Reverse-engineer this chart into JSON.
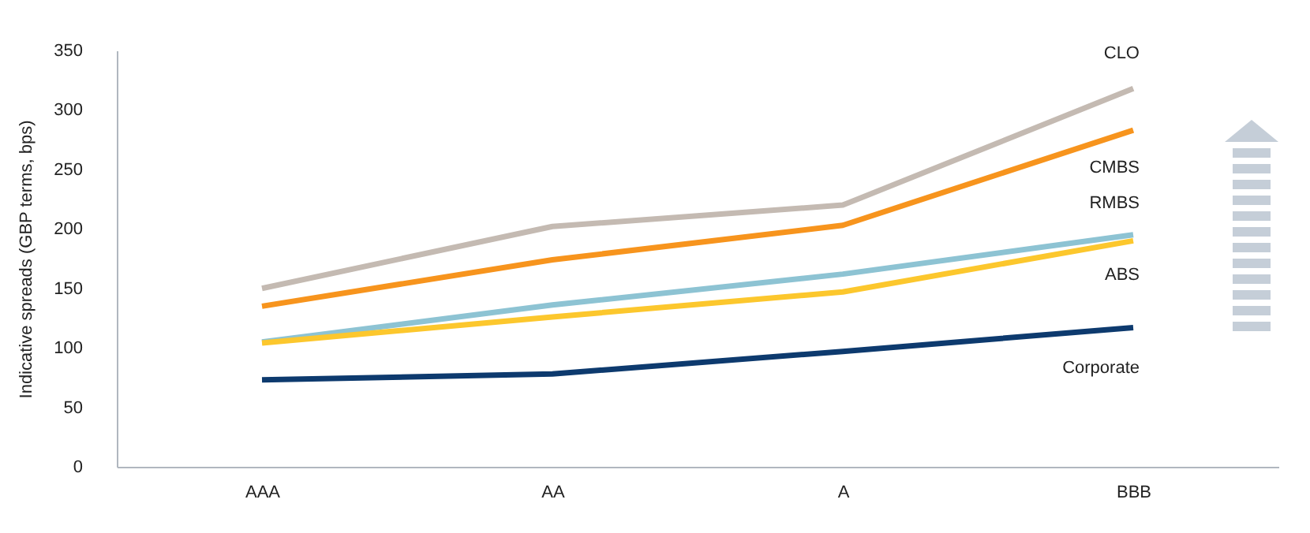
{
  "chart_data": {
    "type": "line",
    "ylabel": "Indicative spreads (GBP terms, bps)",
    "categories": [
      "AAA",
      "AA",
      "A",
      "BBB"
    ],
    "ylim": [
      0,
      350
    ],
    "yticks": [
      0,
      50,
      100,
      150,
      200,
      250,
      300,
      350
    ],
    "grid": false,
    "legend": false,
    "marker": "none",
    "line_style": "solid",
    "series": [
      {
        "name": "CLO",
        "color": "#c4bab2",
        "values": [
          150,
          202,
          220,
          318
        ]
      },
      {
        "name": "CMBS",
        "color": "#f7941d",
        "values": [
          135,
          174,
          203,
          283
        ]
      },
      {
        "name": "RMBS",
        "color": "#8dc3d3",
        "values": [
          105,
          136,
          162,
          195
        ]
      },
      {
        "name": "ABS",
        "color": "#fcc72d",
        "values": [
          104,
          126,
          147,
          190
        ]
      },
      {
        "name": "Corporate",
        "color": "#0d3a6e",
        "values": [
          73,
          78,
          97,
          117
        ]
      }
    ]
  }
}
